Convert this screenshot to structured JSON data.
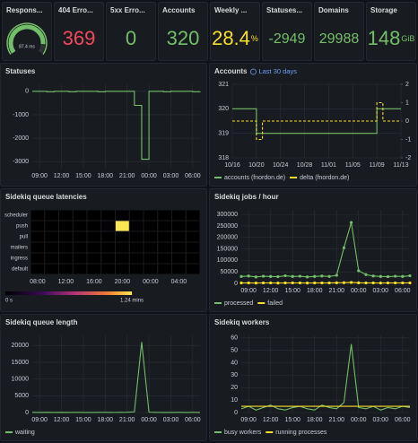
{
  "stats": [
    {
      "title": "Respons...",
      "value": 87.4,
      "label": "87.4 ms",
      "min": 0,
      "max": 100,
      "color": "#73bf69"
    },
    {
      "title": "404 Erro...",
      "value": 369,
      "color": "#f2495c"
    },
    {
      "title": "5xx Erro...",
      "value": 0,
      "color": "#73bf69"
    },
    {
      "title": "Accounts",
      "value": 320,
      "color": "#73bf69"
    },
    {
      "title": "Weekly ...",
      "value": 28.4,
      "unit": "%",
      "color": "#fade2a"
    },
    {
      "title": "Statuses...",
      "value": -2949,
      "color": "#73bf69"
    },
    {
      "title": "Domains",
      "value": 29988,
      "color": "#73bf69"
    },
    {
      "title": "Storage",
      "value": 148,
      "unit": "GiB",
      "color": "#73bf69"
    }
  ],
  "chart_data": [
    {
      "type": "line",
      "title": "Statuses",
      "step": true,
      "categories": [
        null,
        "09:00",
        null,
        null,
        "12:00",
        null,
        null,
        "15:00",
        null,
        null,
        "18:00",
        null,
        null,
        "21:00",
        null,
        null,
        "00:00",
        null,
        null,
        "03:00",
        null,
        null,
        "06:00",
        null
      ],
      "series": [
        {
          "color": "#73bf69",
          "values": [
            0,
            0,
            -20,
            0,
            0,
            -20,
            0,
            0,
            0,
            -20,
            0,
            0,
            0,
            0,
            -600,
            -2900,
            0,
            0,
            -20,
            0,
            0,
            0,
            -20,
            0
          ]
        }
      ],
      "ylim": [
        -3300,
        300
      ],
      "yticks": [
        0,
        -1000,
        -2000,
        -3000
      ],
      "grid": true
    },
    {
      "type": "line",
      "title": "Accounts",
      "subtitle": "Last 30 days",
      "step": true,
      "categories": [
        "10/16",
        null,
        null,
        null,
        "10/20",
        null,
        null,
        null,
        "10/24",
        null,
        null,
        null,
        "10/28",
        null,
        null,
        null,
        "11/01",
        null,
        null,
        null,
        "11/05",
        null,
        null,
        null,
        "11/09",
        null,
        null,
        null,
        "11/13"
      ],
      "series": [
        {
          "name": "accounts (fnordon.de)",
          "color": "#73bf69",
          "values": [
            320,
            320,
            320,
            320,
            319,
            319,
            319,
            319,
            319,
            319,
            319,
            319,
            319,
            319,
            319,
            319,
            319,
            319,
            319,
            319,
            319,
            319,
            319,
            319,
            320,
            320,
            320,
            320,
            320
          ]
        },
        {
          "name": "delta (fnordon.de)",
          "color": "#fade2a",
          "axis": "y2",
          "dash": true,
          "values": [
            0,
            0,
            0,
            0,
            -1,
            0,
            0,
            0,
            0,
            0,
            0,
            0,
            0,
            0,
            0,
            0,
            0,
            0,
            0,
            0,
            0,
            0,
            0,
            0,
            1,
            0,
            0,
            0,
            0
          ]
        }
      ],
      "ylim": [
        318,
        321
      ],
      "yticks": [
        318,
        319,
        320,
        321
      ],
      "y2lim": [
        -2,
        2
      ],
      "y2ticks": [
        -2,
        -1,
        0,
        1,
        2
      ],
      "grid": true
    },
    {
      "type": "heatmap",
      "title": "Sidekiq queue latencies",
      "rows": [
        "scheduler",
        "push",
        "pull",
        "mailers",
        "ingress",
        "default"
      ],
      "categories": [
        "08:00",
        null,
        "12:00",
        null,
        "16:00",
        null,
        "20:00",
        null,
        "00:00",
        null,
        "04:00",
        null
      ],
      "values": [
        [
          0,
          0,
          0,
          0,
          0,
          0,
          1,
          0,
          0,
          0,
          0,
          0
        ],
        [
          0,
          0,
          0,
          0,
          0,
          2,
          74.4,
          1,
          0,
          0,
          0,
          0
        ],
        [
          0,
          0,
          0,
          0,
          0,
          0,
          0,
          0,
          0,
          0,
          0,
          0
        ],
        [
          0,
          0,
          0,
          0,
          0,
          0,
          0,
          0,
          0,
          0,
          0,
          0
        ],
        [
          0,
          0,
          0,
          0,
          0,
          0,
          0,
          0,
          0,
          0,
          0,
          0
        ],
        [
          0,
          0,
          0,
          0,
          0,
          0,
          0,
          0,
          0,
          0,
          0,
          0
        ]
      ],
      "zlim": [
        0,
        74.4
      ],
      "zticks": [
        {
          "value": 0,
          "label": "0 s"
        },
        {
          "value": 74.4,
          "label": "1.24 mins"
        }
      ]
    },
    {
      "type": "line",
      "title": "Sidekiq jobs / hour",
      "points": true,
      "categories": [
        null,
        "09:00",
        null,
        null,
        "12:00",
        null,
        null,
        "15:00",
        null,
        null,
        "18:00",
        null,
        null,
        "21:00",
        null,
        null,
        "00:00",
        null,
        null,
        "03:00",
        null,
        null,
        "06:00",
        null
      ],
      "series": [
        {
          "name": "processed",
          "color": "#73bf69",
          "values": [
            30000,
            32000,
            28000,
            31000,
            30000,
            29000,
            33000,
            30000,
            31000,
            28000,
            30000,
            32000,
            30000,
            35000,
            155000,
            265000,
            55000,
            38000,
            32000,
            30000,
            29000,
            31000,
            30000,
            33000
          ]
        },
        {
          "name": "failed",
          "color": "#fade2a",
          "values": [
            2000,
            2000,
            1500,
            2000,
            2000,
            1500,
            2000,
            2000,
            2000,
            1500,
            2000,
            2000,
            2000,
            2500,
            3000,
            4000,
            2500,
            2000,
            2000,
            1500,
            2000,
            2000,
            2000,
            2000
          ]
        }
      ],
      "ylim": [
        0,
        320000
      ],
      "yticks": [
        0,
        50000,
        100000,
        150000,
        200000,
        250000,
        300000
      ],
      "grid": true
    },
    {
      "type": "line",
      "title": "Sidekiq queue length",
      "categories": [
        null,
        "09:00",
        null,
        null,
        "12:00",
        null,
        null,
        "15:00",
        null,
        null,
        "18:00",
        null,
        null,
        "21:00",
        null,
        null,
        "00:00",
        null,
        null,
        "03:00",
        null,
        null,
        "06:00",
        null
      ],
      "series": [
        {
          "name": "waiting",
          "color": "#73bf69",
          "values": [
            40,
            30,
            60,
            20,
            50,
            30,
            40,
            20,
            30,
            60,
            40,
            30,
            50,
            80,
            200,
            21000,
            100,
            40,
            30,
            20,
            40,
            30,
            50,
            30
          ]
        }
      ],
      "ylim": [
        0,
        23000
      ],
      "yticks": [
        0,
        5000,
        10000,
        15000,
        20000
      ],
      "grid": true
    },
    {
      "type": "line",
      "title": "Sidekiq workers",
      "categories": [
        null,
        "09:00",
        null,
        null,
        "12:00",
        null,
        null,
        "15:00",
        null,
        null,
        "18:00",
        null,
        null,
        "21:00",
        null,
        null,
        "00:00",
        null,
        null,
        "03:00",
        null,
        null,
        "06:00",
        null
      ],
      "series": [
        {
          "name": "busy workers",
          "color": "#73bf69",
          "values": [
            3,
            5,
            2,
            4,
            6,
            3,
            2,
            4,
            5,
            3,
            2,
            6,
            4,
            3,
            8,
            55,
            4,
            3,
            5,
            2,
            4,
            3,
            5,
            4
          ]
        },
        {
          "name": "running processes",
          "color": "#fade2a",
          "values": [
            5,
            5,
            5,
            5,
            5,
            5,
            5,
            5,
            5,
            5,
            5,
            5,
            5,
            5,
            5,
            5,
            5,
            5,
            5,
            5,
            5,
            5,
            5,
            5
          ]
        }
      ],
      "ylim": [
        0,
        62
      ],
      "yticks": [
        0,
        10,
        20,
        30,
        40,
        50,
        60
      ],
      "grid": true
    }
  ]
}
